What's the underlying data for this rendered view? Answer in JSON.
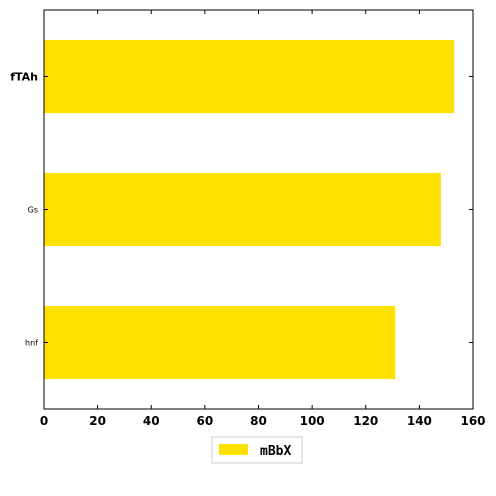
{
  "chart_data": {
    "type": "bar",
    "orientation": "horizontal",
    "categories": [
      "fTAh",
      "Gs",
      "hnf"
    ],
    "series": [
      {
        "name": "mBbX",
        "values": [
          153,
          148,
          131
        ],
        "color": "#FFE100"
      }
    ],
    "xlim": [
      0,
      160
    ],
    "xticks": [
      "0",
      "20",
      "40",
      "60",
      "80",
      "100",
      "120",
      "140",
      "160"
    ],
    "title": "",
    "xlabel": "",
    "ylabel": "",
    "grid": false,
    "legend": {
      "position": "bottom-center",
      "entries": [
        "mBbX"
      ]
    }
  }
}
